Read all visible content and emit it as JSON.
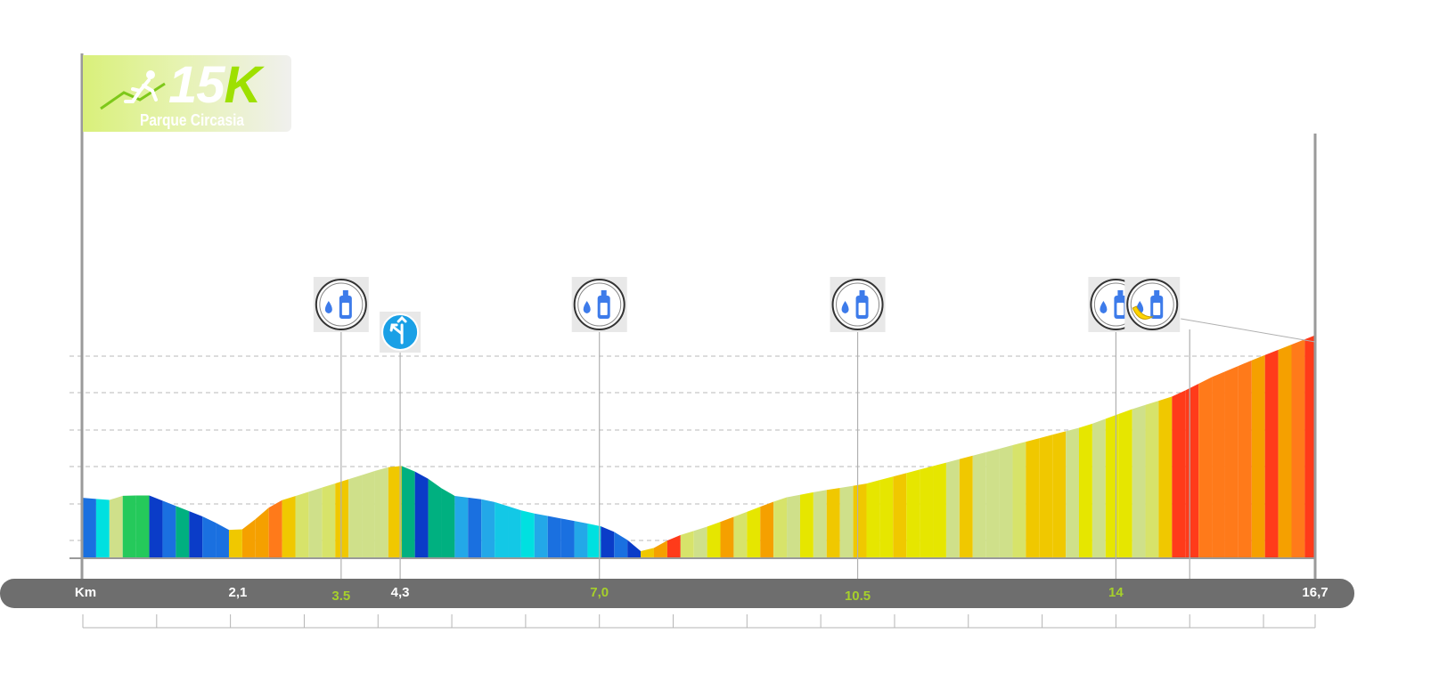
{
  "logo": {
    "title": "15",
    "title_k": "K",
    "subtitle": "Parque Circasia"
  },
  "colors": {
    "axis_bar": "#6e6e6e",
    "green_label": "#a6d02b",
    "white_label": "#ffffff",
    "icon_blue": "#3d7bea",
    "direction_blue": "#1aa0e6"
  },
  "axis": {
    "unit_label": "Km",
    "labels": [
      {
        "text": "2,1",
        "km": 2.1,
        "color": "white"
      },
      {
        "text": "3.5",
        "km": 3.5,
        "color": "green"
      },
      {
        "text": "4,3",
        "km": 4.3,
        "color": "white"
      },
      {
        "text": "7,0",
        "km": 7.0,
        "color": "green"
      },
      {
        "text": "10.5",
        "km": 10.5,
        "color": "green"
      },
      {
        "text": "14",
        "km": 14.0,
        "color": "green"
      },
      {
        "text": "16,7",
        "km": 16.7,
        "color": "white"
      }
    ]
  },
  "chart_data": {
    "type": "area",
    "title": "15K Parque Circasia",
    "xlabel": "Km",
    "ylabel": "",
    "xlim": [
      0,
      16.7
    ],
    "ylim": [
      0,
      5.5
    ],
    "grid": true,
    "elevation_profile": [
      [
        0.0,
        1.3
      ],
      [
        0.4,
        1.25
      ],
      [
        0.55,
        1.35
      ],
      [
        0.9,
        1.35
      ],
      [
        1.3,
        1.1
      ],
      [
        1.7,
        0.85
      ],
      [
        2.05,
        0.55
      ],
      [
        2.2,
        0.65
      ],
      [
        2.6,
        1.2
      ],
      [
        3.2,
        1.5
      ],
      [
        3.7,
        1.75
      ],
      [
        4.1,
        1.95
      ],
      [
        4.3,
        2.0
      ],
      [
        4.6,
        1.8
      ],
      [
        5.0,
        1.35
      ],
      [
        5.5,
        1.25
      ],
      [
        6.0,
        1.0
      ],
      [
        6.5,
        0.85
      ],
      [
        7.0,
        0.7
      ],
      [
        7.3,
        0.5
      ],
      [
        7.6,
        0.1
      ],
      [
        8.0,
        0.45
      ],
      [
        8.5,
        0.7
      ],
      [
        9.0,
        1.0
      ],
      [
        9.5,
        1.3
      ],
      [
        10.0,
        1.45
      ],
      [
        10.6,
        1.6
      ],
      [
        11.2,
        1.85
      ],
      [
        11.8,
        2.1
      ],
      [
        12.4,
        2.35
      ],
      [
        13.0,
        2.6
      ],
      [
        13.6,
        2.85
      ],
      [
        14.2,
        3.2
      ],
      [
        14.8,
        3.5
      ],
      [
        15.3,
        3.9
      ],
      [
        15.9,
        4.3
      ],
      [
        16.3,
        4.55
      ],
      [
        16.7,
        4.8
      ]
    ],
    "markers": [
      {
        "km": 3.5,
        "type": "hydration",
        "icon": "water-bottle-icon"
      },
      {
        "km": 4.3,
        "type": "direction",
        "icon": "turn-left-icon"
      },
      {
        "km": 7.0,
        "type": "hydration",
        "icon": "water-bottle-icon"
      },
      {
        "km": 10.5,
        "type": "hydration",
        "icon": "water-bottle-icon"
      },
      {
        "km": 14.0,
        "type": "hydration",
        "icon": "water-bottle-icon"
      },
      {
        "km": 15.0,
        "type": "hydration-food",
        "icon": "banana-water-icon"
      }
    ]
  }
}
